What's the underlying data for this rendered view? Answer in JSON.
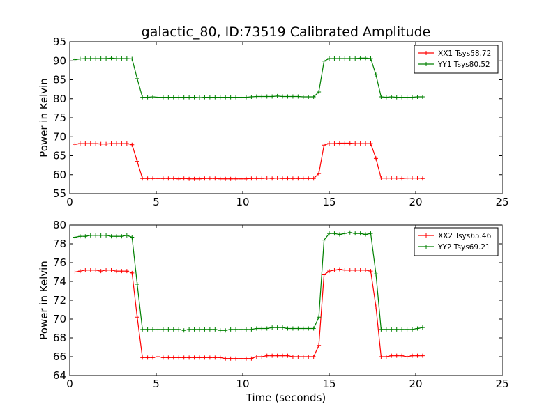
{
  "figure": {
    "title": "galactic_80, ID:73519 Calibrated Amplitude"
  },
  "chart_data": [
    {
      "type": "line",
      "title": "galactic_80, ID:73519 Calibrated Amplitude",
      "xlabel": "",
      "ylabel": "Power in Kelvin",
      "xlim": [
        0,
        25
      ],
      "ylim": [
        55,
        95
      ],
      "xticks": [
        "0",
        "5",
        "10",
        "15",
        "20",
        "25"
      ],
      "yticks": [
        "55",
        "60",
        "65",
        "70",
        "75",
        "80",
        "85",
        "90",
        "95"
      ],
      "grid": false,
      "legend": "top-right",
      "x": [
        0.3,
        0.6,
        0.9,
        1.2,
        1.5,
        1.8,
        2.1,
        2.4,
        2.7,
        3.0,
        3.3,
        3.6,
        3.9,
        4.2,
        4.5,
        4.8,
        5.1,
        5.4,
        5.7,
        6.0,
        6.3,
        6.6,
        6.9,
        7.2,
        7.5,
        7.8,
        8.1,
        8.4,
        8.7,
        9.0,
        9.3,
        9.6,
        9.9,
        10.2,
        10.5,
        10.8,
        11.1,
        11.4,
        11.7,
        12.0,
        12.3,
        12.6,
        12.9,
        13.2,
        13.5,
        13.8,
        14.1,
        14.4,
        14.7,
        15.0,
        15.3,
        15.6,
        15.9,
        16.2,
        16.5,
        16.8,
        17.1,
        17.4,
        17.7,
        18.0,
        18.3,
        18.6,
        18.9,
        19.2,
        19.5,
        19.8,
        20.1,
        20.4
      ],
      "series": [
        {
          "name": "XX1 Tsys58.72",
          "color": "#ff0000",
          "values": [
            68.0,
            68.2,
            68.2,
            68.2,
            68.2,
            68.1,
            68.1,
            68.2,
            68.2,
            68.2,
            68.2,
            67.9,
            63.5,
            59.0,
            59.0,
            59.0,
            59.0,
            59.0,
            59.0,
            59.0,
            58.9,
            59.0,
            58.9,
            58.9,
            58.9,
            59.0,
            59.0,
            59.0,
            58.9,
            58.9,
            58.9,
            58.9,
            58.9,
            58.9,
            59.0,
            59.0,
            59.0,
            59.1,
            59.0,
            59.1,
            59.0,
            59.0,
            59.0,
            59.0,
            59.0,
            59.0,
            59.0,
            60.3,
            67.8,
            68.2,
            68.2,
            68.3,
            68.3,
            68.3,
            68.2,
            68.2,
            68.2,
            68.2,
            64.3,
            59.1,
            59.1,
            59.1,
            59.1,
            59.0,
            59.1,
            59.1,
            59.1,
            59.0
          ]
        },
        {
          "name": "YY1 Tsys80.52",
          "color": "#008000",
          "values": [
            90.3,
            90.5,
            90.6,
            90.6,
            90.6,
            90.6,
            90.6,
            90.7,
            90.6,
            90.6,
            90.6,
            90.5,
            85.3,
            80.4,
            80.4,
            80.5,
            80.4,
            80.4,
            80.4,
            80.4,
            80.4,
            80.4,
            80.4,
            80.4,
            80.3,
            80.4,
            80.4,
            80.4,
            80.4,
            80.4,
            80.4,
            80.4,
            80.4,
            80.4,
            80.5,
            80.6,
            80.6,
            80.6,
            80.6,
            80.7,
            80.6,
            80.6,
            80.6,
            80.6,
            80.5,
            80.5,
            80.5,
            81.8,
            89.9,
            90.6,
            90.6,
            90.6,
            90.6,
            90.6,
            90.6,
            90.7,
            90.7,
            90.6,
            86.3,
            80.5,
            80.4,
            80.5,
            80.4,
            80.4,
            80.4,
            80.4,
            80.5,
            80.5
          ]
        }
      ]
    },
    {
      "type": "line",
      "title": "",
      "xlabel": "Time (seconds)",
      "ylabel": "Power in Kelvin",
      "xlim": [
        0,
        25
      ],
      "ylim": [
        64,
        80
      ],
      "xticks": [
        "0",
        "5",
        "10",
        "15",
        "20",
        "25"
      ],
      "yticks": [
        "64",
        "66",
        "68",
        "70",
        "72",
        "74",
        "76",
        "78",
        "80"
      ],
      "grid": false,
      "legend": "top-right",
      "x": [
        0.3,
        0.6,
        0.9,
        1.2,
        1.5,
        1.8,
        2.1,
        2.4,
        2.7,
        3.0,
        3.3,
        3.6,
        3.9,
        4.2,
        4.5,
        4.8,
        5.1,
        5.4,
        5.7,
        6.0,
        6.3,
        6.6,
        6.9,
        7.2,
        7.5,
        7.8,
        8.1,
        8.4,
        8.7,
        9.0,
        9.3,
        9.6,
        9.9,
        10.2,
        10.5,
        10.8,
        11.1,
        11.4,
        11.7,
        12.0,
        12.3,
        12.6,
        12.9,
        13.2,
        13.5,
        13.8,
        14.1,
        14.4,
        14.7,
        15.0,
        15.3,
        15.6,
        15.9,
        16.2,
        16.5,
        16.8,
        17.1,
        17.4,
        17.7,
        18.0,
        18.3,
        18.6,
        18.9,
        19.2,
        19.5,
        19.8,
        20.1,
        20.4
      ],
      "series": [
        {
          "name": "XX2 Tsys65.46",
          "color": "#ff0000",
          "values": [
            75.0,
            75.1,
            75.2,
            75.2,
            75.2,
            75.1,
            75.2,
            75.2,
            75.1,
            75.1,
            75.1,
            74.9,
            70.2,
            65.9,
            65.9,
            65.9,
            66.0,
            65.9,
            65.9,
            65.9,
            65.9,
            65.9,
            65.9,
            65.9,
            65.9,
            65.9,
            65.9,
            65.9,
            65.9,
            65.8,
            65.8,
            65.8,
            65.8,
            65.8,
            65.8,
            66.0,
            66.0,
            66.1,
            66.1,
            66.1,
            66.1,
            66.1,
            66.0,
            66.0,
            66.0,
            66.0,
            66.0,
            67.2,
            74.7,
            75.1,
            75.2,
            75.3,
            75.2,
            75.2,
            75.2,
            75.2,
            75.2,
            75.1,
            71.3,
            66.0,
            66.0,
            66.1,
            66.1,
            66.1,
            66.0,
            66.1,
            66.1,
            66.1
          ]
        },
        {
          "name": "YY2 Tsys69.21",
          "color": "#008000",
          "values": [
            78.7,
            78.8,
            78.8,
            78.9,
            78.9,
            78.9,
            78.9,
            78.8,
            78.8,
            78.8,
            78.9,
            78.7,
            73.7,
            68.9,
            68.9,
            68.9,
            68.9,
            68.9,
            68.9,
            68.9,
            68.9,
            68.8,
            68.9,
            68.9,
            68.9,
            68.9,
            68.9,
            68.9,
            68.8,
            68.8,
            68.9,
            68.9,
            68.9,
            68.9,
            68.9,
            69.0,
            69.0,
            69.0,
            69.1,
            69.1,
            69.1,
            69.0,
            69.0,
            69.0,
            69.0,
            69.0,
            69.0,
            70.2,
            78.4,
            79.1,
            79.1,
            79.0,
            79.1,
            79.2,
            79.1,
            79.1,
            79.0,
            79.1,
            74.8,
            68.9,
            68.9,
            68.9,
            68.9,
            68.9,
            68.9,
            68.9,
            69.0,
            69.1
          ]
        }
      ]
    }
  ]
}
